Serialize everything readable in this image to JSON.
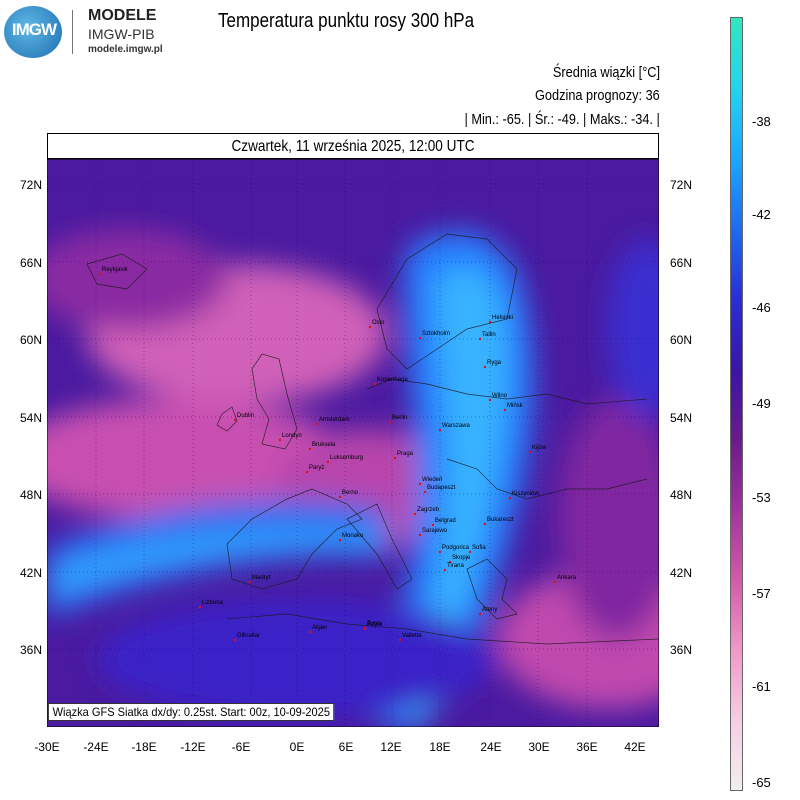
{
  "header": {
    "logo_text": "IMGW",
    "brand_line1": "MODELE",
    "brand_line2": "IMGW-PIB",
    "brand_line3": "modele.imgw.pl",
    "title": "Temperatura punktu rosy 300 hPa"
  },
  "info": {
    "line1": "Średnia wiązki [°C]",
    "line2": "Godzina prognozy: 36",
    "line3": "| Min.:    -65. | Śr.:    -49. | Maks.:    -34. |"
  },
  "date_label": "Czwartek, 11 września 2025, 12:00 UTC",
  "source_label": "Wiązka GFS Siatka dx/dy: 0.25st. Start: 00z, 10-09-2025",
  "axes": {
    "lat_labels": [
      "72N",
      "66N",
      "60N",
      "54N",
      "48N",
      "42N",
      "36N"
    ],
    "lon_labels": [
      "-30E",
      "-24E",
      "-18E",
      "-12E",
      "-6E",
      "0E",
      "6E",
      "12E",
      "18E",
      "24E",
      "30E",
      "36E",
      "42E"
    ]
  },
  "colorbar": {
    "labels": [
      "-38",
      "-42",
      "-46",
      "-49",
      "-53",
      "-57",
      "-61",
      "-65"
    ],
    "colors": [
      "#2ee8c0",
      "#22d4ee",
      "#1aa8ff",
      "#1e6cf0",
      "#2a2ed8",
      "#3a15a8",
      "#6a1a8c",
      "#a0339c",
      "#d25aa8",
      "#f098c8",
      "#f6cde2",
      "#f2eef1"
    ]
  },
  "cities": [
    "Dublin",
    "Londyn",
    "Amsterdam",
    "Bruksela",
    "Luksemburg",
    "Paryż",
    "Berno",
    "Madryt",
    "Lizbona",
    "Gibraltar",
    "Algier",
    "Tunis",
    "Rzym",
    "Berlin",
    "Praga",
    "Wiedeń",
    "Budapeszt",
    "Zagrzeb",
    "Belgrad",
    "Sarajewo",
    "Podgorica",
    "Skopje",
    "Tirana",
    "Sofia",
    "Bukareszt",
    "Kiszyniów",
    "Kijów",
    "Mińsk",
    "Wilno",
    "Ryga",
    "Tallin",
    "Helsinki",
    "Sztokholm",
    "Oslo",
    "Kopenhaga",
    "Warszawa",
    "Ateny",
    "Ankara",
    "Valletta",
    "Reykjavik",
    "Monako"
  ]
}
